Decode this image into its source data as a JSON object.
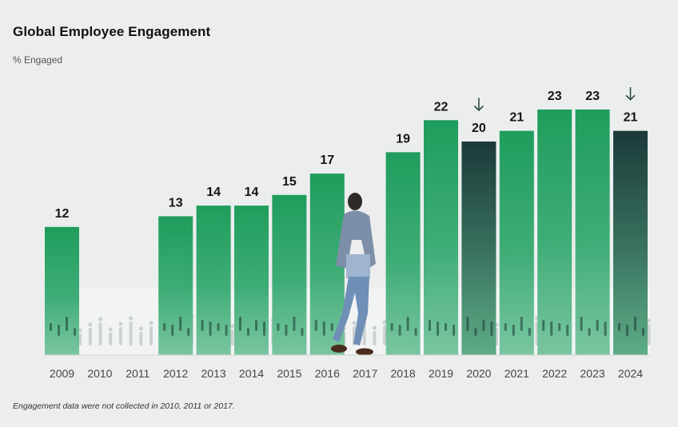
{
  "title": "Global Employee Engagement",
  "subtitle": "% Engaged",
  "footnote": "Engagement data were not collected in 2010, 2011 or 2017.",
  "colors": {
    "bar_green_top": "#22a060",
    "bar_green_bottom": "#3aa070",
    "bar_dark_top": "#1c3b3a",
    "bar_dark_bottom": "#2f7a5a",
    "background": "#eceeee",
    "baseline": "#cfd4d3",
    "arrow": "#2b4a45"
  },
  "decline_marker_icon": "arrow-down-icon",
  "chart_data": {
    "type": "bar",
    "title": "Global Employee Engagement",
    "ylabel": "% Engaged",
    "xlabel": "",
    "categories": [
      "2009",
      "2010",
      "2011",
      "2012",
      "2013",
      "2014",
      "2015",
      "2016",
      "2017",
      "2018",
      "2019",
      "2020",
      "2021",
      "2022",
      "2023",
      "2024"
    ],
    "values": [
      12,
      null,
      null,
      13,
      14,
      14,
      15,
      17,
      null,
      19,
      22,
      20,
      21,
      23,
      23,
      21
    ],
    "labels": [
      "12",
      "",
      "",
      "13",
      "14",
      "14",
      "15",
      "17",
      "",
      "19",
      "22",
      "20",
      "21",
      "23",
      "23",
      "21"
    ],
    "declines": [
      false,
      false,
      false,
      false,
      false,
      false,
      false,
      false,
      false,
      false,
      false,
      true,
      false,
      false,
      false,
      true
    ],
    "ylim": [
      0,
      23
    ],
    "grid": false,
    "legend": "none"
  }
}
